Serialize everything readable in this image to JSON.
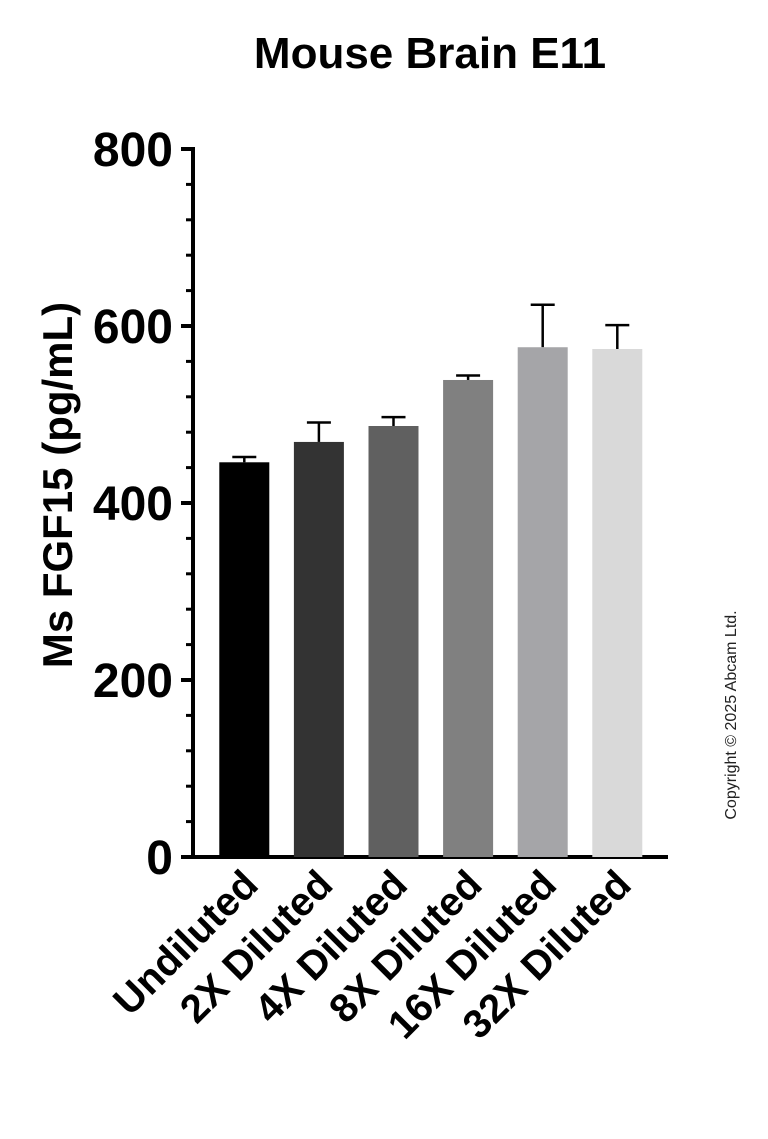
{
  "chart_data": {
    "type": "bar",
    "title": "Mouse  Brain  E11",
    "y_label": "Ms FGF15 (pg/mL)",
    "categories": [
      "Undiluted",
      "2X Diluted",
      "4X Diluted",
      "8X Diluted",
      "16X Diluted",
      "32X Diluted"
    ],
    "series": [
      {
        "name": "Ms FGF15",
        "values": [
          446,
          469,
          487,
          539,
          576,
          574
        ],
        "errors": [
          6,
          22,
          10,
          5,
          48,
          27
        ]
      }
    ],
    "colors": [
      "#000000",
      "#333333",
      "#606060",
      "#808080",
      "#a5a5a8",
      "#d9d9d9"
    ],
    "ylim": [
      0,
      800
    ],
    "yticks": [
      0,
      200,
      400,
      600,
      800
    ],
    "copyright": "Copyright © 2025 Abcam Ltd."
  }
}
